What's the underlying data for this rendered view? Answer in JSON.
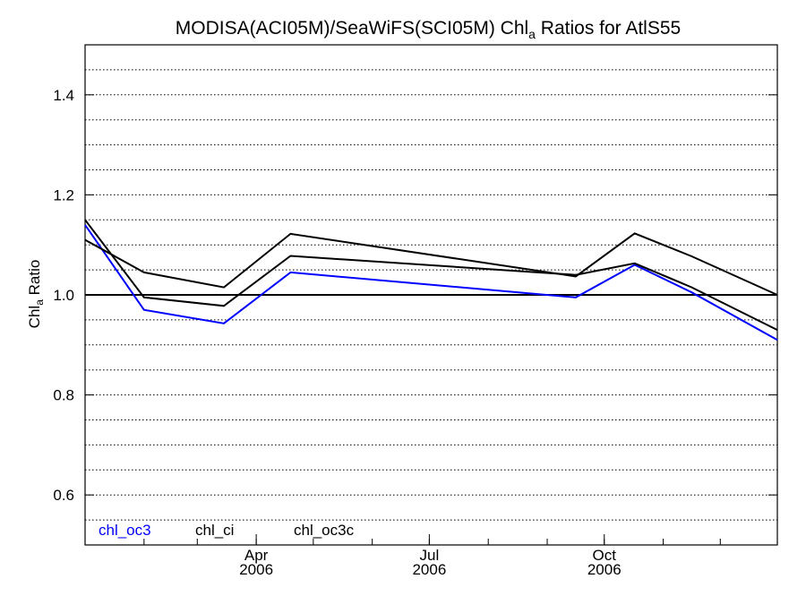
{
  "chart_data": {
    "type": "line",
    "title_main": "MODISA(ACI05M)/SeaWiFS(SCI05M)  Chl",
    "title_sub": "a",
    "title_tail": " Ratios for AtlS55",
    "ylabel_main": "Chl",
    "ylabel_sub": "a",
    "ylabel_tail": " Ratio",
    "ylim": [
      0.5,
      1.5
    ],
    "xlim": [
      "2006-01-01",
      "2006-12-31"
    ],
    "y_ticks": [
      "0.6",
      "0.8",
      "1.0",
      "1.2",
      "1.4"
    ],
    "y_tick_values": [
      0.6,
      0.8,
      1.0,
      1.2,
      1.4
    ],
    "x_ticks": [
      {
        "date": "2006-04-01",
        "month": "Apr",
        "year": "2006"
      },
      {
        "date": "2006-07-01",
        "month": "Jul",
        "year": "2006"
      },
      {
        "date": "2006-10-01",
        "month": "Oct",
        "year": "2006"
      }
    ],
    "x_minor_ticks": [
      "2006-02-01",
      "2006-03-01",
      "2006-04-01",
      "2006-05-01",
      "2006-06-01",
      "2006-07-01",
      "2006-08-01",
      "2006-09-01",
      "2006-10-01",
      "2006-11-01",
      "2006-12-01"
    ],
    "grid": true,
    "grid_step": 0.05,
    "reference_line": 1.0,
    "x": [
      "2006-01-01",
      "2006-02-01",
      "2006-03-15",
      "2006-04-19",
      "2006-09-16",
      "2006-10-17",
      "2006-11-16",
      "2006-12-31"
    ],
    "series": [
      {
        "name": "chl_oc3",
        "color": "#0000ff",
        "values": [
          1.14,
          0.97,
          0.943,
          1.045,
          0.995,
          1.06,
          1.005,
          0.91
        ]
      },
      {
        "name": "chl_ci",
        "color": "#000000",
        "values": [
          1.15,
          0.995,
          0.978,
          1.078,
          1.04,
          1.063,
          1.015,
          0.93
        ]
      },
      {
        "name": "chl_oc3c",
        "color": "#000000",
        "values": [
          1.11,
          1.045,
          1.015,
          1.122,
          1.037,
          1.123,
          1.077,
          1.0
        ]
      }
    ],
    "legend_position": "bottom-left"
  }
}
